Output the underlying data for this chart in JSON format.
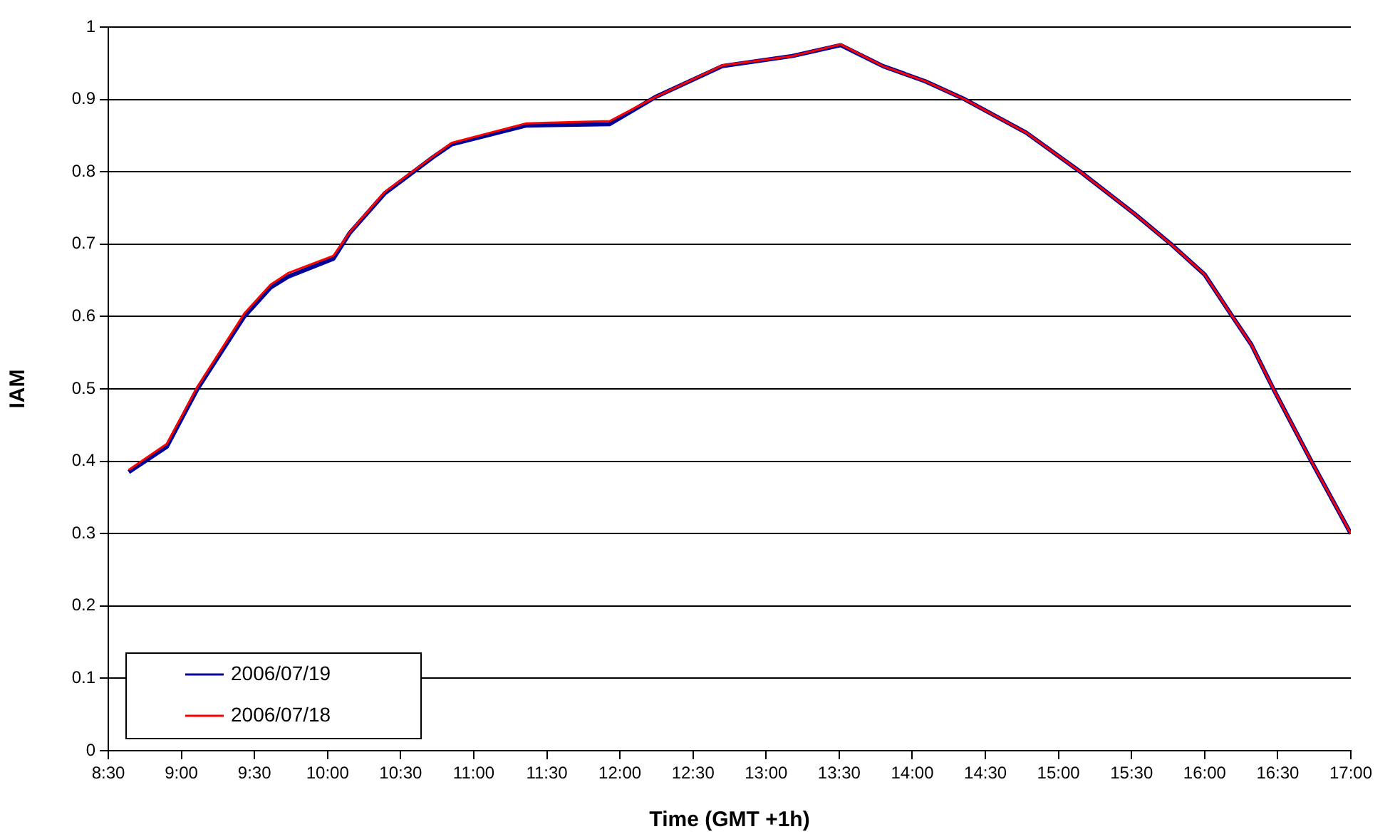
{
  "chart_data": {
    "type": "line",
    "xlabel": "Time (GMT +1h)",
    "ylabel": "IAM",
    "xlim": [
      8.5,
      17
    ],
    "xticks": [
      {
        "value": 8.5,
        "label": "8:30"
      },
      {
        "value": 9,
        "label": "9:00"
      },
      {
        "value": 9.5,
        "label": "9:30"
      },
      {
        "value": 10,
        "label": "10:00"
      },
      {
        "value": 10.5,
        "label": "10:30"
      },
      {
        "value": 11,
        "label": "11:00"
      },
      {
        "value": 11.5,
        "label": "11:30"
      },
      {
        "value": 12,
        "label": "12:00"
      },
      {
        "value": 12.5,
        "label": "12:30"
      },
      {
        "value": 13,
        "label": "13:00"
      },
      {
        "value": 13.5,
        "label": "13:30"
      },
      {
        "value": 14,
        "label": "14:00"
      },
      {
        "value": 14.5,
        "label": "14:30"
      },
      {
        "value": 15,
        "label": "15:00"
      },
      {
        "value": 15.5,
        "label": "15:30"
      },
      {
        "value": 16,
        "label": "16:00"
      },
      {
        "value": 16.5,
        "label": "16:30"
      },
      {
        "value": 17,
        "label": "17:00"
      }
    ],
    "ylim": [
      0,
      1
    ],
    "yticks": [
      0,
      0.1,
      0.2,
      0.3,
      0.4,
      0.5,
      0.6,
      0.7,
      0.8,
      0.9,
      1
    ],
    "x": [
      8.64,
      8.9,
      9.11,
      9.43,
      9.61,
      9.73,
      10.04,
      10.15,
      10.39,
      10.72,
      10.85,
      11.36,
      11.93,
      12.24,
      12.7,
      13.18,
      13.51,
      13.8,
      14.09,
      14.36,
      14.78,
      15.15,
      15.52,
      15.77,
      16.0,
      16.19,
      16.32,
      16.47,
      16.73,
      17.0
    ],
    "series": [
      {
        "name": "2006/07/19",
        "color": "#000099",
        "values": [
          0.385,
          0.42,
          0.5,
          0.6,
          0.64,
          0.655,
          0.68,
          0.715,
          0.77,
          0.82,
          0.838,
          0.864,
          0.866,
          0.903,
          0.946,
          0.96,
          0.975,
          0.946,
          0.925,
          0.9,
          0.854,
          0.8,
          0.742,
          0.7,
          0.658,
          0.6,
          0.561,
          0.5,
          0.4,
          0.3
        ]
      },
      {
        "name": "2006/07/18",
        "color": "#ff0000",
        "values": [
          0.388,
          0.424,
          0.503,
          0.604,
          0.644,
          0.66,
          0.684,
          0.716,
          0.772,
          0.821,
          0.84,
          0.867,
          0.87,
          0.903,
          0.947,
          0.96,
          0.976,
          0.946,
          0.925,
          0.9,
          0.854,
          0.8,
          0.742,
          0.7,
          0.658,
          0.6,
          0.561,
          0.5,
          0.4,
          0.3
        ]
      }
    ],
    "grid": "y",
    "legend": "bottom left",
    "marker": "none",
    "line_style": "solid"
  }
}
